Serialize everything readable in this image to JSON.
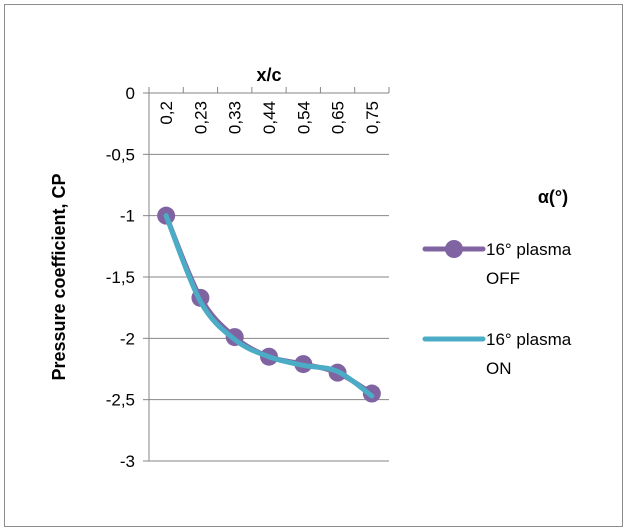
{
  "chart_data": {
    "type": "line",
    "xlabel": "x/c",
    "ylabel": "Pressure coefficient, CP",
    "ylim": [
      -3,
      0
    ],
    "yticks": [
      "0",
      "-0,5",
      "-1",
      "-1,5",
      "-2",
      "-2,5",
      "-3"
    ],
    "ytick_values": [
      0,
      -0.5,
      -1,
      -1.5,
      -2,
      -2.5,
      -3
    ],
    "categories": [
      "0,2",
      "0,23",
      "0,33",
      "0,44",
      "0,54",
      "0,65",
      "0,75"
    ],
    "grid": true,
    "legend_position": "right",
    "legend_title": "α(°)",
    "series": [
      {
        "name": "16° plasma OFF",
        "name_lines": [
          "16° plasma",
          "OFF"
        ],
        "values": [
          -1.0,
          -1.67,
          -1.99,
          -2.15,
          -2.21,
          -2.28,
          -2.45
        ],
        "color": "#8064A2",
        "marker": "circle"
      },
      {
        "name": "16° plasma ON",
        "name_lines": [
          "16° plasma",
          "ON"
        ],
        "values": [
          -1.0,
          -1.7,
          -2.01,
          -2.15,
          -2.22,
          -2.27,
          -2.47
        ],
        "color": "#4BACC6",
        "marker": "none"
      }
    ]
  }
}
